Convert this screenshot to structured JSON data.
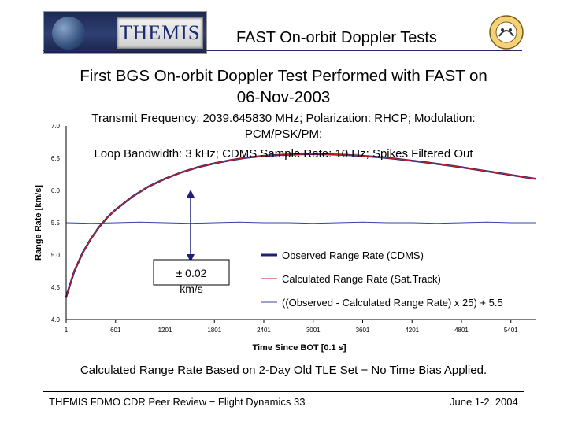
{
  "header": {
    "logo_text": "THEMIS",
    "title": "FAST On-orbit Doppler Tests"
  },
  "heading": {
    "line1": "First BGS On-orbit Doppler Test Performed with FAST on",
    "line2": "06-Nov-2003"
  },
  "chart_data": {
    "type": "line",
    "title_lines": [
      "Transmit Frequency: 2039.645830 MHz; Polarization: RHCP; Modulation:",
      "PCM/PSK/PM;",
      "Loop Bandwidth: 3 kHz; CDMS Sample Rate: 10 Hz; Spikes Filtered Out"
    ],
    "xlabel": "Time Since BOT [0.1 s]",
    "ylabel": "Range Rate [km/s]",
    "xlim": [
      1,
      5700
    ],
    "ylim": [
      4.0,
      7.0
    ],
    "x_ticks": [
      "1",
      "601",
      "1201",
      "1801",
      "2401",
      "3001",
      "3601",
      "4201",
      "4801",
      "5401"
    ],
    "y_ticks": [
      "4.0",
      "4.5",
      "5.0",
      "5.5",
      "6.0",
      "6.5",
      "7.0"
    ],
    "series": [
      {
        "name": "Observed Range Rate (CDMS)",
        "color": "#1f1f7a",
        "x": [
          1,
          100,
          200,
          300,
          400,
          500,
          600,
          800,
          1000,
          1200,
          1400,
          1600,
          1800,
          2000,
          2200,
          2400,
          2600,
          2800,
          3000,
          3200,
          3400,
          3600,
          3800,
          4000,
          4200,
          4400,
          4600,
          4800,
          5000,
          5200,
          5400,
          5600,
          5700
        ],
        "values": [
          4.35,
          4.75,
          5.03,
          5.25,
          5.43,
          5.58,
          5.7,
          5.9,
          6.06,
          6.18,
          6.28,
          6.36,
          6.42,
          6.47,
          6.51,
          6.535,
          6.55,
          6.56,
          6.565,
          6.56,
          6.55,
          6.535,
          6.515,
          6.49,
          6.46,
          6.43,
          6.395,
          6.36,
          6.32,
          6.28,
          6.24,
          6.2,
          6.18
        ]
      },
      {
        "name": "Calculated Range Rate (Sat.Track)",
        "color": "#cc2222",
        "x": [
          1,
          100,
          200,
          300,
          400,
          500,
          600,
          800,
          1000,
          1200,
          1400,
          1600,
          1800,
          2000,
          2200,
          2400,
          2600,
          2800,
          3000,
          3200,
          3400,
          3600,
          3800,
          4000,
          4200,
          4400,
          4600,
          4800,
          5000,
          5200,
          5400,
          5600,
          5700
        ],
        "values": [
          4.35,
          4.75,
          5.03,
          5.25,
          5.43,
          5.58,
          5.7,
          5.9,
          6.06,
          6.18,
          6.28,
          6.36,
          6.42,
          6.47,
          6.51,
          6.535,
          6.55,
          6.56,
          6.565,
          6.56,
          6.55,
          6.535,
          6.515,
          6.49,
          6.46,
          6.43,
          6.395,
          6.36,
          6.32,
          6.28,
          6.24,
          6.2,
          6.18
        ]
      },
      {
        "name": "((Observed - Calculated Range Rate) x 25) + 5.5",
        "color": "#3344aa",
        "x": [
          1,
          300,
          600,
          900,
          1200,
          1500,
          1800,
          2100,
          2400,
          2700,
          3000,
          3300,
          3600,
          3900,
          4200,
          4500,
          4800,
          5100,
          5400,
          5700
        ],
        "values": [
          5.5,
          5.49,
          5.5,
          5.51,
          5.5,
          5.49,
          5.5,
          5.51,
          5.5,
          5.5,
          5.49,
          5.5,
          5.51,
          5.5,
          5.5,
          5.49,
          5.5,
          5.51,
          5.5,
          5.5
        ]
      }
    ],
    "legend_position": "bottom-right",
    "annotation": {
      "text_line1": "± 0.02",
      "text_line2": "km/s"
    },
    "grid": false
  },
  "note": "Calculated Range Rate Based on 2-Day Old TLE Set − No Time Bias Applied.",
  "footer": {
    "left": "THEMIS FDMO CDR Peer Review − Flight Dynamics 33",
    "right": "June 1-2, 2004"
  }
}
